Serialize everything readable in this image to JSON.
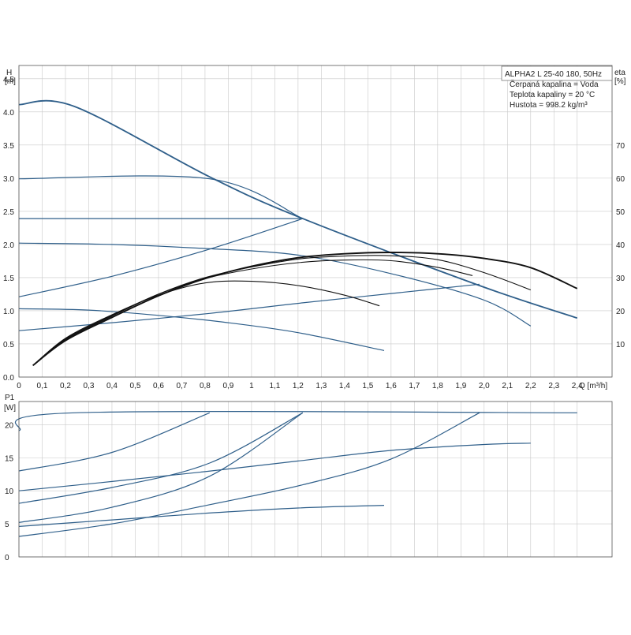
{
  "chart_data": [
    {
      "type": "line",
      "y_axis_label": "H",
      "y_axis_unit": "[m]",
      "y2_axis_label": "eta",
      "y2_axis_unit": "[%]",
      "x_axis_label": "Q [m³/h]",
      "xlim": [
        0,
        2.55
      ],
      "ylim": [
        0,
        4.7
      ],
      "y2lim": [
        0,
        94
      ],
      "grid": true,
      "x_ticks": [
        "0",
        "0,1",
        "0,2",
        "0,3",
        "0,4",
        "0,5",
        "0,6",
        "0,7",
        "0,8",
        "0,9",
        "1",
        "1,1",
        "1,2",
        "1,3",
        "1,4",
        "1,5",
        "1,6",
        "1,7",
        "1,8",
        "1,9",
        "2,0",
        "2,1",
        "2,2",
        "2,3",
        "2,4"
      ],
      "x_tick_values": [
        0,
        0.1,
        0.2,
        0.3,
        0.4,
        0.5,
        0.6,
        0.7,
        0.8,
        0.9,
        1.0,
        1.1,
        1.2,
        1.3,
        1.4,
        1.5,
        1.6,
        1.7,
        1.8,
        1.9,
        2.0,
        2.1,
        2.2,
        2.3,
        2.4
      ],
      "y_ticks": [
        "0.0",
        "0.5",
        "1.0",
        "1.5",
        "2.0",
        "2.5",
        "3.0",
        "3.5",
        "4.0",
        "4.5"
      ],
      "y_tick_values": [
        0,
        0.5,
        1.0,
        1.5,
        2.0,
        2.5,
        3.0,
        3.5,
        4.0,
        4.5
      ],
      "y2_ticks": [
        "10",
        "20",
        "30",
        "40",
        "50",
        "60",
        "70"
      ],
      "y2_tick_values": [
        10,
        20,
        30,
        40,
        50,
        60,
        70
      ],
      "info_box": [
        "ALPHA2 L 25-40 180, 50Hz",
        "Čerpaná kapalina = Voda",
        "Teplota kapaliny = 20 °C",
        "Hustota = 998.2 kg/m³"
      ],
      "head_series": [
        {
          "style": "max",
          "points": [
            [
              0,
              4.11
            ],
            [
              0.24,
              4.08
            ],
            [
              0.82,
              3.02
            ],
            [
              1.22,
              2.39
            ],
            [
              1.98,
              1.38
            ],
            [
              2.4,
              0.89
            ]
          ]
        },
        {
          "style": "normal",
          "points": [
            [
              0,
              2.99
            ],
            [
              0.82,
              2.99
            ],
            [
              1.22,
              2.39
            ]
          ]
        },
        {
          "style": "normal",
          "points": [
            [
              0,
              2.39
            ],
            [
              1.22,
              2.39
            ]
          ]
        },
        {
          "style": "normal",
          "points": [
            [
              0,
              2.02
            ],
            [
              0.4,
              2.0
            ],
            [
              0.8,
              1.94
            ],
            [
              1.2,
              1.84
            ],
            [
              1.6,
              1.56
            ],
            [
              2.0,
              1.16
            ],
            [
              2.2,
              0.77
            ]
          ]
        },
        {
          "style": "normal",
          "points": [
            [
              0,
              1.03
            ],
            [
              0.3,
              1.01
            ],
            [
              0.6,
              0.93
            ],
            [
              0.9,
              0.82
            ],
            [
              1.2,
              0.67
            ],
            [
              1.57,
              0.4
            ]
          ]
        },
        {
          "style": "normal",
          "points": [
            [
              0,
              1.21
            ],
            [
              0.4,
              1.52
            ],
            [
              0.82,
              1.93
            ],
            [
              1.22,
              2.39
            ]
          ]
        },
        {
          "style": "normal",
          "points": [
            [
              0,
              0.7
            ],
            [
              0.4,
              0.82
            ],
            [
              0.82,
              0.96
            ],
            [
              1.22,
              1.12
            ],
            [
              1.6,
              1.26
            ],
            [
              1.98,
              1.4
            ]
          ]
        }
      ],
      "eta_series": [
        {
          "style": "max",
          "points": [
            [
              0.06,
              3.5
            ],
            [
              0.2,
              11.0
            ],
            [
              0.4,
              18.0
            ],
            [
              0.6,
              24.5
            ],
            [
              0.8,
              29.7
            ],
            [
              1.0,
              33.4
            ],
            [
              1.2,
              36.0
            ],
            [
              1.4,
              37.2
            ],
            [
              1.6,
              37.6
            ],
            [
              1.8,
              37.2
            ],
            [
              2.0,
              35.8
            ],
            [
              2.2,
              33.0
            ],
            [
              2.4,
              26.7
            ]
          ]
        },
        {
          "style": "normal",
          "points": [
            [
              0.06,
              3.5
            ],
            [
              0.2,
              11.3
            ],
            [
              0.4,
              18.4
            ],
            [
              0.6,
              25.0
            ],
            [
              0.8,
              30.0
            ],
            [
              1.0,
              33.2
            ],
            [
              1.2,
              35.6
            ],
            [
              1.4,
              36.5
            ],
            [
              1.6,
              36.6
            ],
            [
              1.8,
              35.4
            ],
            [
              2.0,
              31.5
            ],
            [
              2.2,
              26.3
            ]
          ]
        },
        {
          "style": "normal",
          "points": [
            [
              0.06,
              3.5
            ],
            [
              0.2,
              11.5
            ],
            [
              0.4,
              18.6
            ],
            [
              0.6,
              25.0
            ],
            [
              0.8,
              29.7
            ],
            [
              1.0,
              32.6
            ],
            [
              1.2,
              34.5
            ],
            [
              1.4,
              35.3
            ],
            [
              1.6,
              35.1
            ],
            [
              1.8,
              33.1
            ],
            [
              1.95,
              30.6
            ]
          ]
        },
        {
          "style": "normal",
          "points": [
            [
              0.06,
              3.5
            ],
            [
              0.2,
              11.7
            ],
            [
              0.4,
              18.8
            ],
            [
              0.6,
              24.7
            ],
            [
              0.8,
              28.4
            ],
            [
              1.0,
              28.9
            ],
            [
              1.2,
              27.6
            ],
            [
              1.4,
              24.7
            ],
            [
              1.55,
              21.5
            ]
          ]
        }
      ]
    },
    {
      "type": "line",
      "y_axis_label": "P1",
      "y_axis_unit": "[W]",
      "xlim": [
        0,
        2.55
      ],
      "ylim": [
        0,
        23.5
      ],
      "grid": true,
      "y_ticks": [
        "0",
        "5",
        "10",
        "15",
        "20"
      ],
      "y_tick_values": [
        0,
        5,
        10,
        15,
        20
      ],
      "power_series": [
        {
          "points": [
            [
              0,
              19.1
            ],
            [
              0.24,
              21.8
            ],
            [
              2.4,
              21.8
            ]
          ]
        },
        {
          "points": [
            [
              0,
              13.0
            ],
            [
              0.4,
              15.8
            ],
            [
              0.82,
              21.8
            ]
          ]
        },
        {
          "points": [
            [
              0,
              8.1
            ],
            [
              0.4,
              10.5
            ],
            [
              0.82,
              14.2
            ],
            [
              1.22,
              21.8
            ]
          ]
        },
        {
          "points": [
            [
              0,
              5.2
            ],
            [
              0.4,
              7.5
            ],
            [
              0.82,
              12.2
            ],
            [
              1.22,
              21.8
            ]
          ]
        },
        {
          "points": [
            [
              0,
              10.0
            ],
            [
              0.4,
              11.4
            ],
            [
              0.8,
              12.9
            ],
            [
              1.2,
              14.5
            ],
            [
              1.6,
              16.1
            ],
            [
              2.0,
              17.0
            ],
            [
              2.2,
              17.2
            ]
          ]
        },
        {
          "points": [
            [
              0,
              3.1
            ],
            [
              0.4,
              5.0
            ],
            [
              0.82,
              7.9
            ],
            [
              1.22,
              10.9
            ],
            [
              1.6,
              14.8
            ],
            [
              1.98,
              21.8
            ]
          ]
        },
        {
          "points": [
            [
              0,
              4.6
            ],
            [
              0.4,
              5.6
            ],
            [
              0.8,
              6.6
            ],
            [
              1.2,
              7.4
            ],
            [
              1.57,
              7.8
            ]
          ]
        }
      ]
    }
  ]
}
